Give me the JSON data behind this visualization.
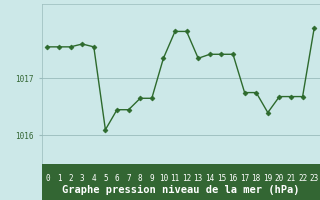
{
  "x": [
    0,
    1,
    2,
    3,
    4,
    5,
    6,
    7,
    8,
    9,
    10,
    11,
    12,
    13,
    14,
    15,
    16,
    17,
    18,
    19,
    20,
    21,
    22,
    23
  ],
  "y": [
    1017.55,
    1017.55,
    1017.55,
    1017.6,
    1017.55,
    1016.1,
    1016.45,
    1016.45,
    1016.65,
    1016.65,
    1017.35,
    1017.82,
    1017.82,
    1017.35,
    1017.42,
    1017.42,
    1017.42,
    1016.75,
    1016.75,
    1016.4,
    1016.68,
    1016.68,
    1016.68,
    1017.88
  ],
  "line_color": "#2d6a2d",
  "marker": "D",
  "markersize": 2.5,
  "linewidth": 1.0,
  "plot_bg_color": "#cce8e8",
  "fig_bg_color": "#cce8e8",
  "bottom_bar_color": "#336633",
  "grid_color": "#99bbbb",
  "ytick_labels": [
    "1016",
    "1017"
  ],
  "yticks": [
    1016,
    1017
  ],
  "ylim": [
    1015.5,
    1018.3
  ],
  "xlim": [
    -0.5,
    23.5
  ],
  "xtick_labels": [
    "0",
    "1",
    "2",
    "3",
    "4",
    "5",
    "6",
    "7",
    "8",
    "9",
    "10",
    "11",
    "12",
    "13",
    "14",
    "15",
    "16",
    "17",
    "18",
    "19",
    "20",
    "21",
    "22",
    "23"
  ],
  "title": "Graphe pression niveau de la mer (hPa)",
  "title_fontsize": 7.5,
  "title_color": "#ffffff",
  "tick_fontsize": 5.5,
  "ytick_color": "#336633",
  "xtick_color": "#ffffff",
  "bottom_bar_height": 0.18
}
